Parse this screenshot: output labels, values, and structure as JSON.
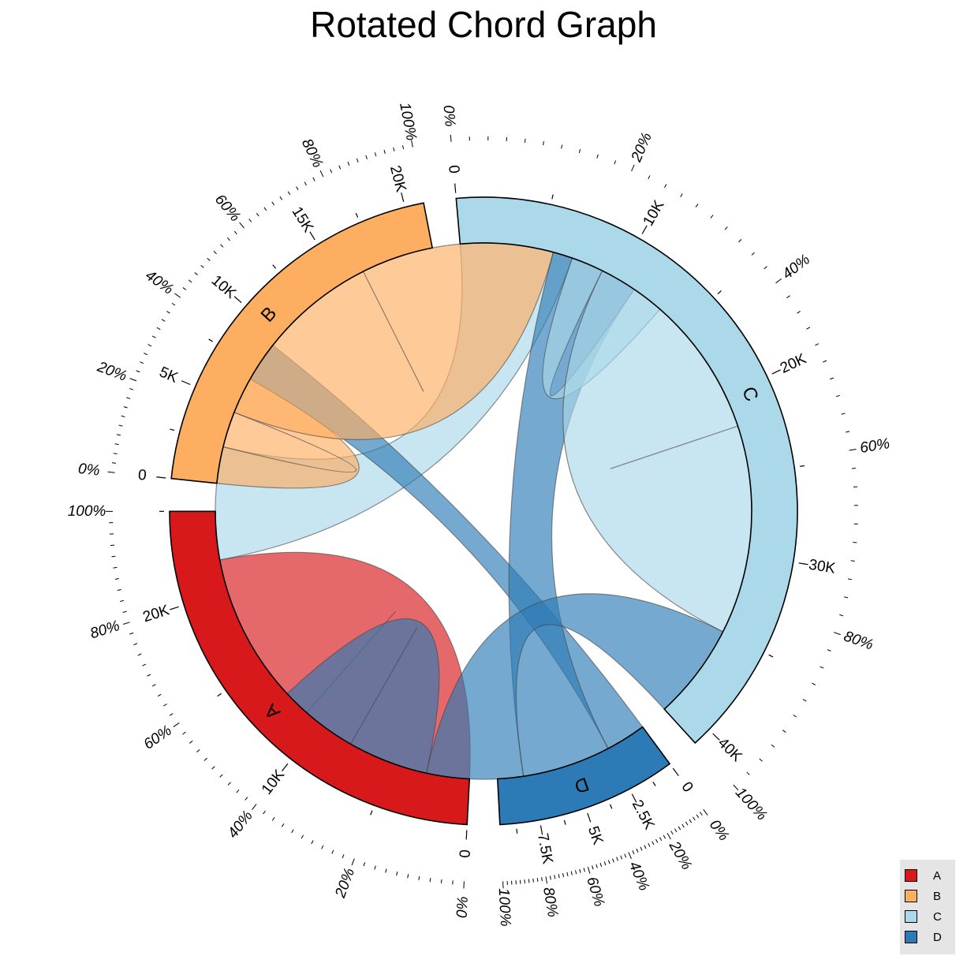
{
  "chart_data": {
    "type": "chord",
    "title": "Rotated Chord Graph",
    "sectors": [
      {
        "name": "A",
        "label": "A",
        "total": 25000,
        "color": "#d7191c",
        "ticks": [
          "0",
          "10K",
          "20K"
        ],
        "percent_ticks": [
          "0%",
          "20%",
          "40%",
          "60%",
          "80%",
          "100%"
        ]
      },
      {
        "name": "B",
        "label": "B",
        "total": 21000,
        "color": "#fdae61",
        "ticks": [
          "0",
          "5K",
          "10K",
          "15K",
          "20K"
        ],
        "percent_ticks": [
          "0%",
          "20%",
          "40%",
          "60%",
          "80%",
          "100%"
        ]
      },
      {
        "name": "C",
        "label": "C",
        "total": 41000,
        "color": "#abd9e9",
        "ticks": [
          "0",
          "10K",
          "20K",
          "30K",
          "40K"
        ],
        "percent_ticks": [
          "0%",
          "20%",
          "40%",
          "60%",
          "80%",
          "100%"
        ]
      },
      {
        "name": "D",
        "label": "D",
        "total": 9600,
        "color": "#2c7bb6",
        "ticks": [
          "0",
          "2.5K",
          "5K",
          "7.5K"
        ],
        "percent_ticks": [
          "0%",
          "20%",
          "40%",
          "60%",
          "80%",
          "100%"
        ]
      }
    ],
    "links": [
      {
        "from": "A",
        "to": "A",
        "value": 11000,
        "color": "#d7191c"
      },
      {
        "from": "A",
        "to": "C",
        "value": 7000,
        "color": "#abd9e9"
      },
      {
        "from": "A",
        "to": "B",
        "value": 4500,
        "color": "#fdae61"
      },
      {
        "from": "A",
        "to": "D",
        "value": 2500,
        "color": "#2c7bb6"
      },
      {
        "from": "B",
        "to": "B",
        "value": 12000,
        "color": "#fdae61"
      },
      {
        "from": "B",
        "to": "D",
        "value": 5500,
        "color": "#2c7bb6"
      },
      {
        "from": "B",
        "to": "C",
        "value": 2000,
        "color": "#abd9e9"
      },
      {
        "from": "C",
        "to": "C",
        "value": 13000,
        "color": "#abd9e9"
      },
      {
        "from": "C",
        "to": "D",
        "value": 6000,
        "color": "#2c7bb6"
      },
      {
        "from": "D",
        "to": "D",
        "value": 5000,
        "color": "#2c7bb6"
      }
    ],
    "legend": {
      "position": "bottom-right",
      "entries": [
        "A",
        "B",
        "C",
        "D"
      ]
    }
  }
}
